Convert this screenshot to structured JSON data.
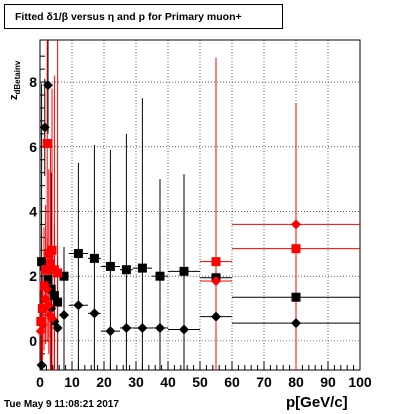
{
  "header": {
    "title": "Fitted δ1/β versus η and p for Primary muon+"
  },
  "footer": {
    "timestamp": "Tue May  9 11:08:21 2017"
  },
  "chart_data": {
    "type": "scatter",
    "title": "Fitted δ1/β versus η and p for Primary muon+",
    "xlabel": "p[GeV/c]",
    "ylabel_main": "z",
    "ylabel_sub": "dBetainv",
    "xlim": [
      0,
      100
    ],
    "ylim": [
      -0.9,
      9.3
    ],
    "xticks": [
      0,
      10,
      20,
      30,
      40,
      50,
      60,
      70,
      80,
      90,
      100
    ],
    "xtick_labels": [
      "0",
      "10",
      "20",
      "30",
      "40",
      "50",
      "60",
      "70",
      "80",
      "90",
      "100"
    ],
    "yticks": [
      0,
      2,
      4,
      6,
      8
    ],
    "ytick_labels": [
      "0",
      "2",
      "4",
      "6",
      "8"
    ],
    "grid": true,
    "series": [
      {
        "marker": "square",
        "color": "#000000",
        "points": [
          {
            "x": 0.5,
            "y": 2.45,
            "xerr": 0.5,
            "yerr": 0.1
          },
          {
            "x": 1.5,
            "y": 2.3,
            "xerr": 0.5,
            "yerr": 0.1
          },
          {
            "x": 2.5,
            "y": 1.9,
            "xerr": 0.5,
            "yerr": 0.1
          },
          {
            "x": 3.5,
            "y": 1.6,
            "xerr": 0.5,
            "yerr": 0.1
          },
          {
            "x": 4.5,
            "y": 1.4,
            "xerr": 0.5,
            "yerr": 0.1
          },
          {
            "x": 5.5,
            "y": 1.2,
            "xerr": 0.5,
            "yerr": 0.1
          },
          {
            "x": 7.5,
            "y": 2.0,
            "xerr": 1.5,
            "yerr": 0.1
          },
          {
            "x": 12,
            "y": 2.7,
            "xerr": 3,
            "yerr": 0.1
          },
          {
            "x": 17,
            "y": 2.55,
            "xerr": 2,
            "yerr": 0.1
          },
          {
            "x": 22,
            "y": 2.3,
            "xerr": 3,
            "yerr": 0.1
          },
          {
            "x": 27,
            "y": 2.2,
            "xerr": 2,
            "yerr": 0.1
          },
          {
            "x": 32,
            "y": 2.25,
            "xerr": 3,
            "yerr": 0.1
          },
          {
            "x": 37.5,
            "y": 2.0,
            "xerr": 2.5,
            "yerr": 0.1
          },
          {
            "x": 45,
            "y": 2.15,
            "xerr": 5,
            "yerr": 0.1
          },
          {
            "x": 55,
            "y": 1.95,
            "xerr": 5,
            "yerr": 0.1
          },
          {
            "x": 80,
            "y": 1.35,
            "xerr": 20,
            "yerr": 0.1
          }
        ]
      },
      {
        "marker": "diamond",
        "color": "#000000",
        "points": [
          {
            "x": 0.5,
            "y": -0.75,
            "xerr": 0.5,
            "yerr": 8.7
          },
          {
            "x": 1.5,
            "y": 6.6,
            "xerr": 0.5,
            "yerr": 1.5
          },
          {
            "x": 2.5,
            "y": 7.9,
            "xerr": 0.5,
            "yerr": 1.5
          },
          {
            "x": 3.5,
            "y": 1.0,
            "xerr": 0.5,
            "yerr": 4.2
          },
          {
            "x": 4.5,
            "y": 0.6,
            "xerr": 0.5,
            "yerr": 3.0
          },
          {
            "x": 5.5,
            "y": 0.4,
            "xerr": 0.5,
            "yerr": 2.2
          },
          {
            "x": 7.5,
            "y": 0.8,
            "xerr": 1.5,
            "yerr": 2.1
          },
          {
            "x": 12,
            "y": 1.1,
            "xerr": 3,
            "yerr": 4.4
          },
          {
            "x": 17,
            "y": 0.85,
            "xerr": 2,
            "yerr": 5.2
          },
          {
            "x": 22,
            "y": 0.3,
            "xerr": 3,
            "yerr": 5.6
          },
          {
            "x": 27,
            "y": 0.4,
            "xerr": 2,
            "yerr": 6.0
          },
          {
            "x": 32,
            "y": 0.4,
            "xerr": 3,
            "yerr": 7.1
          },
          {
            "x": 37.5,
            "y": 0.4,
            "xerr": 2.5,
            "yerr": 4.6
          },
          {
            "x": 45,
            "y": 0.35,
            "xerr": 5,
            "yerr": 4.8
          },
          {
            "x": 55,
            "y": 0.75,
            "xerr": 5,
            "yerr": 0.6
          },
          {
            "x": 80,
            "y": 0.55,
            "xerr": 20,
            "yerr": 1.0
          }
        ]
      },
      {
        "marker": "square",
        "color": "#ff0000",
        "points": [
          {
            "x": 0.25,
            "y": 0.6,
            "xerr": 0.25,
            "yerr": 1.0
          },
          {
            "x": 0.75,
            "y": 1.0,
            "xerr": 0.25,
            "yerr": 1.5
          },
          {
            "x": 1.25,
            "y": 1.7,
            "xerr": 0.25,
            "yerr": 1.8
          },
          {
            "x": 1.75,
            "y": 2.2,
            "xerr": 0.25,
            "yerr": 2.0
          },
          {
            "x": 2.25,
            "y": 6.1,
            "xerr": 0.25,
            "yerr": 3.2
          },
          {
            "x": 2.75,
            "y": 2.7,
            "xerr": 0.25,
            "yerr": 2.6
          },
          {
            "x": 3.25,
            "y": 2.4,
            "xerr": 0.25,
            "yerr": 3.6
          },
          {
            "x": 3.75,
            "y": 2.8,
            "xerr": 0.25,
            "yerr": 5.0
          },
          {
            "x": 4.5,
            "y": 2.2,
            "xerr": 0.5,
            "yerr": 6.0
          },
          {
            "x": 5.5,
            "y": 2.1,
            "xerr": 0.5,
            "yerr": 8.0
          },
          {
            "x": 55,
            "y": 2.45,
            "xerr": 5,
            "yerr": 6.3
          },
          {
            "x": 80,
            "y": 2.85,
            "xerr": 20,
            "yerr": 4.5
          }
        ]
      },
      {
        "marker": "diamond",
        "color": "#ff0000",
        "points": [
          {
            "x": 0.25,
            "y": 0.3,
            "xerr": 0.25,
            "yerr": 0.9
          },
          {
            "x": 0.75,
            "y": 0.5,
            "xerr": 0.25,
            "yerr": 1.2
          },
          {
            "x": 1.25,
            "y": 1.0,
            "xerr": 0.25,
            "yerr": 1.3
          },
          {
            "x": 1.75,
            "y": 1.3,
            "xerr": 0.25,
            "yerr": 1.4
          },
          {
            "x": 2.25,
            "y": 1.6,
            "xerr": 0.25,
            "yerr": 1.6
          },
          {
            "x": 2.75,
            "y": 1.1,
            "xerr": 0.25,
            "yerr": 1.5
          },
          {
            "x": 3.25,
            "y": 0.8,
            "xerr": 0.25,
            "yerr": 1.6
          },
          {
            "x": 3.75,
            "y": 0.7,
            "xerr": 0.25,
            "yerr": 1.6
          },
          {
            "x": 55,
            "y": 1.85,
            "xerr": 5,
            "yerr": 2.5
          },
          {
            "x": 80,
            "y": 3.6,
            "xerr": 20,
            "yerr": 3.6
          }
        ]
      }
    ]
  }
}
